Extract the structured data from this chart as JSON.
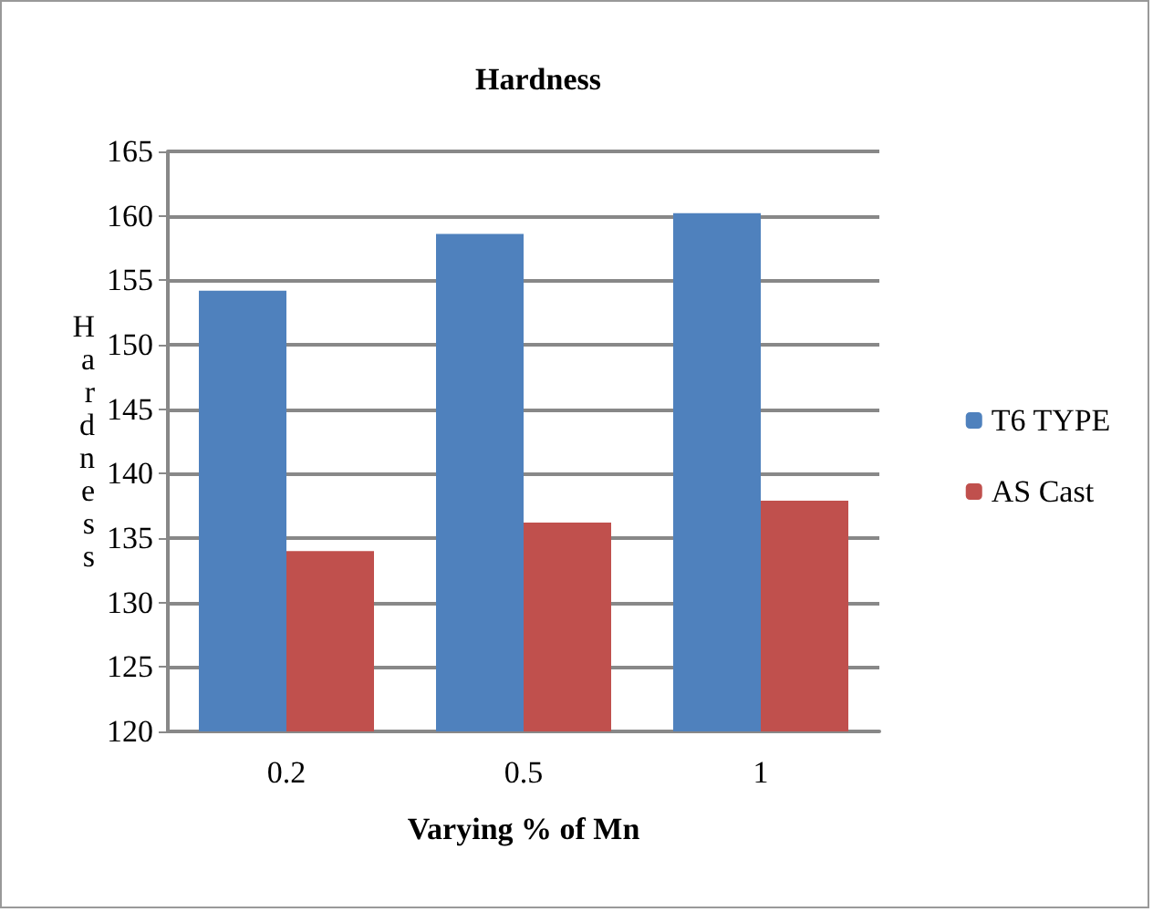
{
  "chart_data": {
    "type": "bar",
    "title": "Hardness",
    "xlabel": "Varying % of Mn",
    "ylabel": "Hardness",
    "categories": [
      "0.2",
      "0.5",
      "1"
    ],
    "series": [
      {
        "name": "T6 TYPE",
        "color": "#4f81bd",
        "values": [
          154.2,
          158.6,
          160.2
        ]
      },
      {
        "name": "AS Cast",
        "color": "#c0504d",
        "values": [
          134.0,
          136.2,
          137.9
        ]
      }
    ],
    "ylim": [
      120,
      165
    ],
    "yticks": [
      120,
      125,
      130,
      135,
      140,
      145,
      150,
      155,
      160,
      165
    ],
    "grid": "y",
    "legend": "right"
  }
}
